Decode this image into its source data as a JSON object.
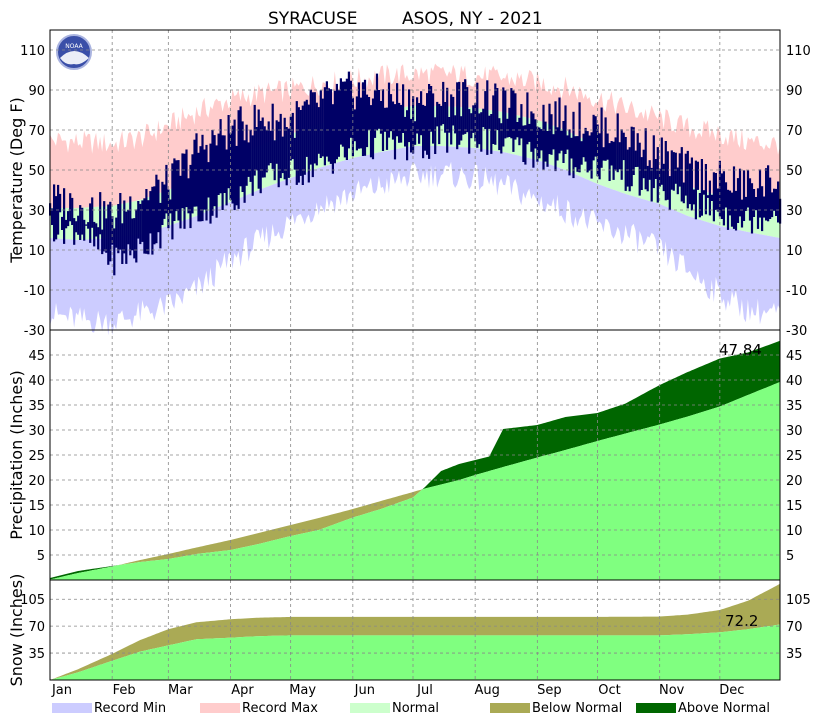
{
  "title": {
    "station": "SYRACUSE",
    "region": "ASOS, NY - 2021"
  },
  "logo": {
    "text": "NOAA",
    "icon": "noaa-logo"
  },
  "colors": {
    "record_min": "#ccccff",
    "record_max": "#ffcccc",
    "normal": "#ccffcc",
    "observed_temp": "#000066",
    "normal_precip": "#80ff80",
    "below_normal": "#aaaa55",
    "above_normal": "#006600"
  },
  "legend": [
    {
      "label": "Record Min",
      "color": "#ccccff"
    },
    {
      "label": "Record Max",
      "color": "#ffcccc"
    },
    {
      "label": "Normal",
      "color": "#ccffcc"
    },
    {
      "label": "Below Normal",
      "color": "#aaaa55"
    },
    {
      "label": "Above Normal",
      "color": "#006600"
    }
  ],
  "chart_data": [
    {
      "type": "area",
      "name": "temperature",
      "ylabel": "Temperature (Deg F)",
      "ylim": [
        -30,
        120
      ],
      "yticks": [
        -30,
        -10,
        10,
        30,
        50,
        70,
        90,
        110
      ],
      "grid": true,
      "x_unit": "day_of_year",
      "x": [
        1,
        15,
        32,
        46,
        60,
        74,
        91,
        105,
        121,
        135,
        152,
        166,
        182,
        196,
        213,
        227,
        244,
        258,
        274,
        288,
        305,
        319,
        335,
        349,
        365
      ],
      "record_max": [
        65,
        64,
        63,
        66,
        72,
        79,
        85,
        88,
        90,
        93,
        95,
        97,
        98,
        98,
        97,
        96,
        94,
        91,
        86,
        81,
        76,
        71,
        68,
        64,
        63
      ],
      "normal_high": [
        31,
        31,
        32,
        35,
        40,
        46,
        55,
        62,
        68,
        73,
        77,
        80,
        82,
        82,
        81,
        79,
        75,
        70,
        62,
        56,
        49,
        42,
        37,
        33,
        31
      ],
      "normal_low": [
        16,
        15,
        16,
        18,
        22,
        27,
        34,
        40,
        46,
        51,
        56,
        59,
        62,
        62,
        61,
        59,
        55,
        50,
        43,
        38,
        33,
        27,
        22,
        19,
        16
      ],
      "record_min": [
        -22,
        -25,
        -26,
        -22,
        -18,
        -10,
        5,
        14,
        24,
        32,
        38,
        42,
        47,
        48,
        46,
        42,
        35,
        30,
        22,
        18,
        10,
        0,
        -12,
        -20,
        -22
      ],
      "observed_high": [
        35,
        33,
        27,
        37,
        43,
        60,
        70,
        75,
        74,
        84,
        90,
        88,
        84,
        86,
        87,
        82,
        79,
        76,
        72,
        68,
        58,
        50,
        45,
        42,
        45
      ],
      "observed_low": [
        22,
        20,
        5,
        10,
        22,
        28,
        35,
        45,
        48,
        52,
        60,
        64,
        60,
        65,
        66,
        62,
        58,
        53,
        52,
        47,
        38,
        34,
        28,
        25,
        30
      ]
    },
    {
      "type": "area",
      "name": "precipitation",
      "ylabel": "Precipitation (Inches)",
      "ylim": [
        0,
        50
      ],
      "yticks": [
        5,
        10,
        15,
        20,
        25,
        30,
        35,
        40,
        45
      ],
      "grid": true,
      "x": [
        1,
        15,
        32,
        46,
        60,
        74,
        91,
        105,
        121,
        135,
        152,
        166,
        182,
        188,
        196,
        205,
        213,
        220,
        227,
        244,
        258,
        274,
        288,
        305,
        319,
        335,
        349,
        365
      ],
      "normal_accum": [
        0.1,
        1.4,
        2.7,
        4.0,
        5.2,
        6.5,
        8.0,
        9.4,
        11.0,
        12.4,
        14.2,
        15.8,
        17.6,
        18.3,
        19.1,
        20.0,
        21.0,
        21.8,
        22.6,
        24.5,
        26.0,
        27.8,
        29.3,
        31.1,
        32.7,
        34.7,
        37.0,
        39.6
      ],
      "observed_accum": [
        0.4,
        1.8,
        2.8,
        3.6,
        4.2,
        5.2,
        6.0,
        7.2,
        8.8,
        10.0,
        12.5,
        14.2,
        16.5,
        18.6,
        21.8,
        23.2,
        24.0,
        24.7,
        30.2,
        31.0,
        32.6,
        33.4,
        35.3,
        39.0,
        41.6,
        44.3,
        45.5,
        47.84
      ],
      "annotation": "47.84"
    },
    {
      "type": "area",
      "name": "snow",
      "ylabel": "Snow (Inches)",
      "ylim": [
        0,
        130
      ],
      "yticks": [
        35,
        70,
        105
      ],
      "grid": true,
      "x": [
        1,
        15,
        32,
        46,
        60,
        74,
        91,
        105,
        121,
        152,
        182,
        213,
        244,
        274,
        305,
        319,
        335,
        349,
        365
      ],
      "normal_accum": [
        0,
        14,
        34,
        52,
        66,
        75,
        79,
        81,
        82,
        82,
        82,
        82,
        82,
        82,
        82.5,
        85,
        91,
        103,
        125
      ],
      "observed_accum": [
        0,
        10,
        25,
        37,
        45,
        53,
        55,
        57,
        58,
        58,
        58,
        58,
        58,
        58,
        58,
        59.5,
        62,
        66,
        72.2
      ],
      "annotation": "72.2"
    }
  ],
  "months": [
    "Jan",
    "Feb",
    "Mar",
    "Apr",
    "May",
    "Jun",
    "Jul",
    "Aug",
    "Sep",
    "Oct",
    "Nov",
    "Dec"
  ]
}
